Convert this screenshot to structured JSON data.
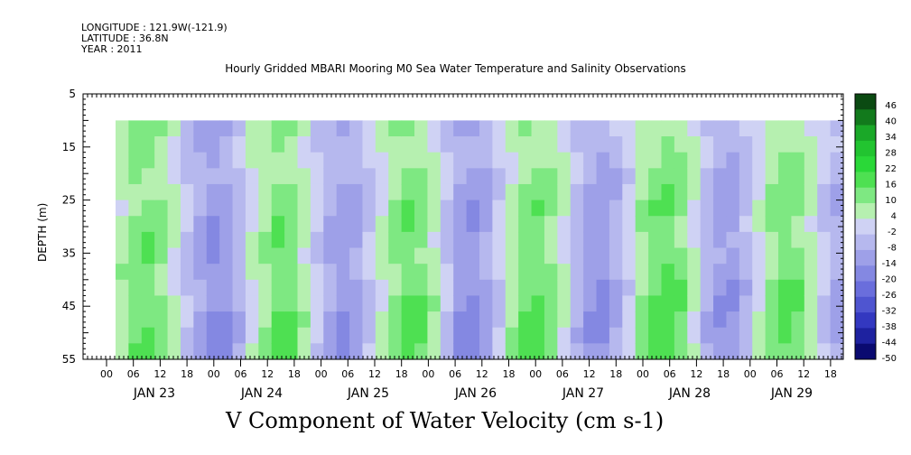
{
  "header": {
    "longitude": "LONGITUDE : 121.9W(-121.9)",
    "latitude": "LATITUDE : 36.8N",
    "year": "YEAR : 2011"
  },
  "chart_data": {
    "type": "heatmap",
    "title": "Hourly Gridded MBARI Mooring M0 Sea Water Temperature and Salinity Observations",
    "xlabel": "V Component of Water Velocity (cm s-1)",
    "ylabel": "DEPTH (m)",
    "y_ticks": [
      5,
      15,
      25,
      35,
      45,
      55
    ],
    "ylim": [
      55,
      5
    ],
    "data_depth_range": [
      10,
      55
    ],
    "x_hour_ticks": [
      "00",
      "06",
      "12",
      "18",
      "00",
      "06",
      "12",
      "18",
      "00",
      "06",
      "12",
      "18",
      "00",
      "06",
      "12",
      "18",
      "00",
      "06",
      "12",
      "18",
      "00",
      "06",
      "12",
      "18",
      "00",
      "06",
      "12",
      "18"
    ],
    "x_day_labels": [
      "JAN 23",
      "JAN 24",
      "JAN 25",
      "JAN 26",
      "JAN 27",
      "JAN 28",
      "JAN 29"
    ],
    "colorbar_labels": [
      "46",
      "40",
      "34",
      "28",
      "22",
      "16",
      "10",
      "4",
      "-2",
      "-8",
      "-14",
      "-20",
      "-26",
      "-32",
      "-38",
      "-44",
      "-50"
    ],
    "colorbar_range": [
      -50,
      50
    ],
    "colorbar_colors": [
      "#0b4a12",
      "#127a1c",
      "#1aa828",
      "#22c430",
      "#2ad838",
      "#4ee052",
      "#7ee882",
      "#b6f0b0",
      "#cfd2f4",
      "#b6b8ee",
      "#9ea0e8",
      "#8488e2",
      "#6a6edc",
      "#4f55d0",
      "#3338c0",
      "#1e22a0",
      "#0a0a70"
    ],
    "columns_v": [
      6,
      12,
      14,
      10,
      4,
      -4,
      -10,
      -14,
      -12,
      -6,
      2,
      8,
      14,
      12,
      6,
      -2,
      -8,
      -12,
      -10,
      -4,
      4,
      10,
      14,
      12,
      6,
      -4,
      -12,
      -14,
      -10,
      -2,
      6,
      12,
      14,
      10,
      4,
      -6,
      -12,
      -14,
      -8,
      0,
      8,
      14,
      16,
      12,
      4,
      -6,
      -12,
      -12,
      -6,
      2,
      10,
      14,
      12,
      6,
      -2,
      -8
    ]
  }
}
